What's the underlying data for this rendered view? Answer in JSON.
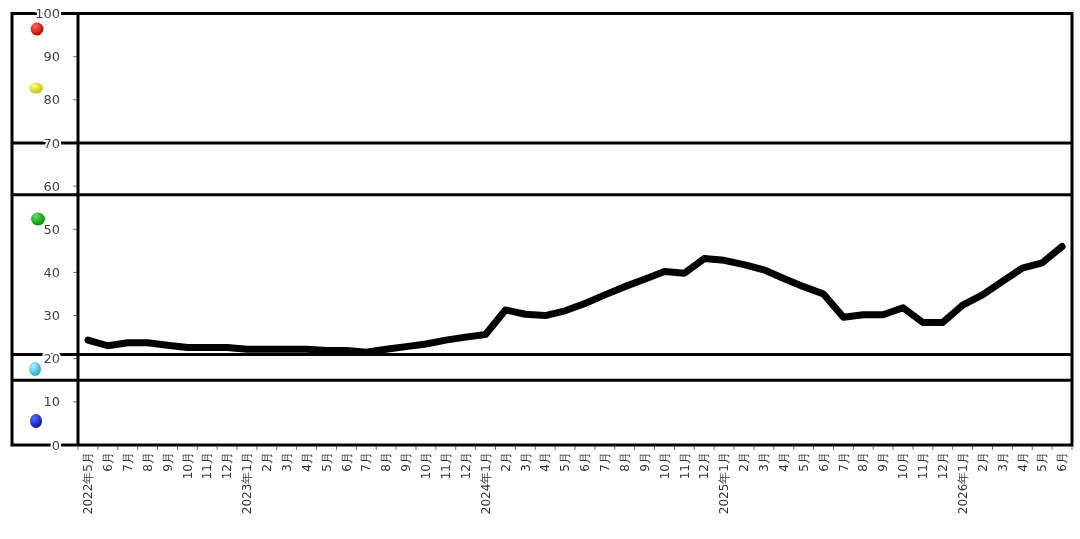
{
  "chart_data": {
    "type": "line",
    "categories": [
      "2022年5月",
      "6月",
      "7月",
      "8月",
      "9月",
      "10月",
      "11月",
      "12月",
      "2023年1月",
      "2月",
      "3月",
      "4月",
      "5月",
      "6月",
      "7月",
      "8月",
      "9月",
      "10月",
      "11月",
      "12月",
      "2024年1月",
      "2月",
      "3月",
      "4月",
      "5月",
      "6月",
      "7月",
      "8月",
      "9月",
      "10月",
      "11月",
      "12月",
      "2025年1月",
      "2月",
      "3月",
      "4月",
      "5月",
      "6月",
      "7月",
      "8月",
      "9月",
      "10月",
      "11月",
      "12月",
      "2026年1月",
      "2月",
      "3月",
      "4月",
      "5月",
      "6月"
    ],
    "series": [
      {
        "color": "#000000",
        "values": [
          24.3,
          23.0,
          23.7,
          23.7,
          23.1,
          22.6,
          22.6,
          22.6,
          22.2,
          22.2,
          22.2,
          22.2,
          21.9,
          21.9,
          21.5,
          22.2,
          22.8,
          23.4,
          24.3,
          25.0,
          25.6,
          31.3,
          30.3,
          30.0,
          31.1,
          32.8,
          34.8,
          36.7,
          38.4,
          40.2,
          39.8,
          43.2,
          42.8,
          41.8,
          40.6,
          38.6,
          36.7,
          35.0,
          29.6,
          30.2,
          30.2,
          31.8,
          28.4,
          28.4,
          32.4,
          34.8,
          37.9,
          41.0,
          42.2,
          46.0
        ]
      }
    ],
    "ylim": [
      0,
      100
    ],
    "yticks": [
      0,
      10,
      20,
      30,
      40,
      50,
      60,
      70,
      80,
      90,
      100
    ],
    "ref_lines": [
      {
        "axis": "y",
        "value": 70,
        "color": "#000000"
      },
      {
        "axis": "y",
        "value": 58,
        "color": "#000000"
      },
      {
        "axis": "y",
        "value": 21,
        "color": "#000000"
      },
      {
        "axis": "y",
        "value": 15,
        "color": "#000000"
      }
    ],
    "line_style": "solid"
  }
}
